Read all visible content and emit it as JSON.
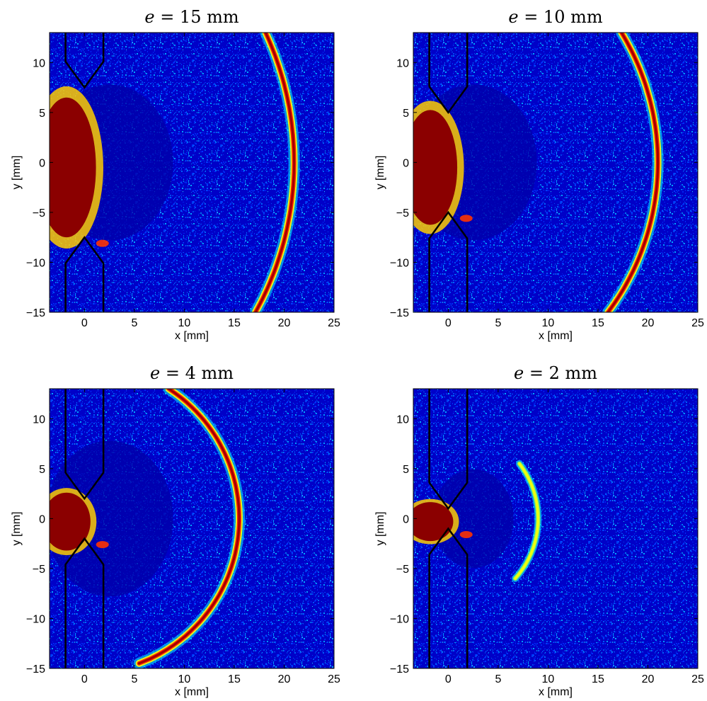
{
  "figure": {
    "xlabel": "x [mm]",
    "ylabel": "y [mm]"
  },
  "chart_data": [
    {
      "type": "heatmap",
      "title": "e = 15 mm",
      "title_var": "e",
      "title_value": "15 mm",
      "xlabel": "x [mm]",
      "ylabel": "y [mm]",
      "xlim": [
        -3.5,
        25
      ],
      "ylim": [
        -15,
        13
      ],
      "xticks": [
        0,
        5,
        10,
        15,
        20,
        25
      ],
      "yticks": [
        -15,
        -10,
        -5,
        0,
        5,
        10
      ],
      "gap_e_mm": 15,
      "electrode_half_width_mm": 1.9,
      "front_center_mm": [
        -10,
        0
      ],
      "front_radius_mm": 31,
      "front_visible_y_range_mm": [
        -15,
        13
      ],
      "colormap": [
        "#00008f",
        "#0000ff",
        "#00ffff",
        "#ffff00",
        "#ff0000",
        "#800000"
      ]
    },
    {
      "type": "heatmap",
      "title": "e = 10 mm",
      "title_var": "e",
      "title_value": "10 mm",
      "xlabel": "x [mm]",
      "ylabel": "y [mm]",
      "xlim": [
        -3.5,
        25
      ],
      "ylim": [
        -15,
        13
      ],
      "xticks": [
        0,
        5,
        10,
        15,
        20,
        25
      ],
      "yticks": [
        -15,
        -10,
        -5,
        0,
        5,
        10
      ],
      "gap_e_mm": 10,
      "electrode_half_width_mm": 1.9,
      "front_center_mm": [
        -4,
        0
      ],
      "front_radius_mm": 25,
      "front_visible_y_range_mm": [
        -15,
        13
      ],
      "colormap": [
        "#00008f",
        "#0000ff",
        "#00ffff",
        "#ffff00",
        "#ff0000",
        "#800000"
      ]
    },
    {
      "type": "heatmap",
      "title": "e = 4 mm",
      "title_var": "e",
      "title_value": "4 mm",
      "xlabel": "x [mm]",
      "ylabel": "y [mm]",
      "xlim": [
        -3.5,
        25
      ],
      "ylim": [
        -15,
        13
      ],
      "xticks": [
        0,
        5,
        10,
        15,
        20,
        25
      ],
      "yticks": [
        -15,
        -10,
        -5,
        0,
        5,
        10
      ],
      "gap_e_mm": 4,
      "electrode_half_width_mm": 1.9,
      "front_center_mm": [
        0,
        0
      ],
      "front_radius_mm": 15.5,
      "front_visible_y_range_mm": [
        -14.5,
        13
      ],
      "colormap": [
        "#00008f",
        "#0000ff",
        "#00ffff",
        "#ffff00",
        "#ff0000",
        "#800000"
      ]
    },
    {
      "type": "heatmap",
      "title": "e = 2 mm",
      "title_var": "e",
      "title_value": "2 mm",
      "xlabel": "x [mm]",
      "ylabel": "y [mm]",
      "xlim": [
        -3.5,
        25
      ],
      "ylim": [
        -15,
        13
      ],
      "xticks": [
        0,
        5,
        10,
        15,
        20,
        25
      ],
      "yticks": [
        -15,
        -10,
        -5,
        0,
        5,
        10
      ],
      "gap_e_mm": 2,
      "electrode_half_width_mm": 1.9,
      "front_center_mm": [
        0,
        0
      ],
      "front_radius_mm": 9,
      "front_visible_y_range_mm": [
        -6,
        5.5
      ],
      "colormap": [
        "#00008f",
        "#0000ff",
        "#00ffff",
        "#ffff00",
        "#ff0000",
        "#800000"
      ]
    }
  ]
}
